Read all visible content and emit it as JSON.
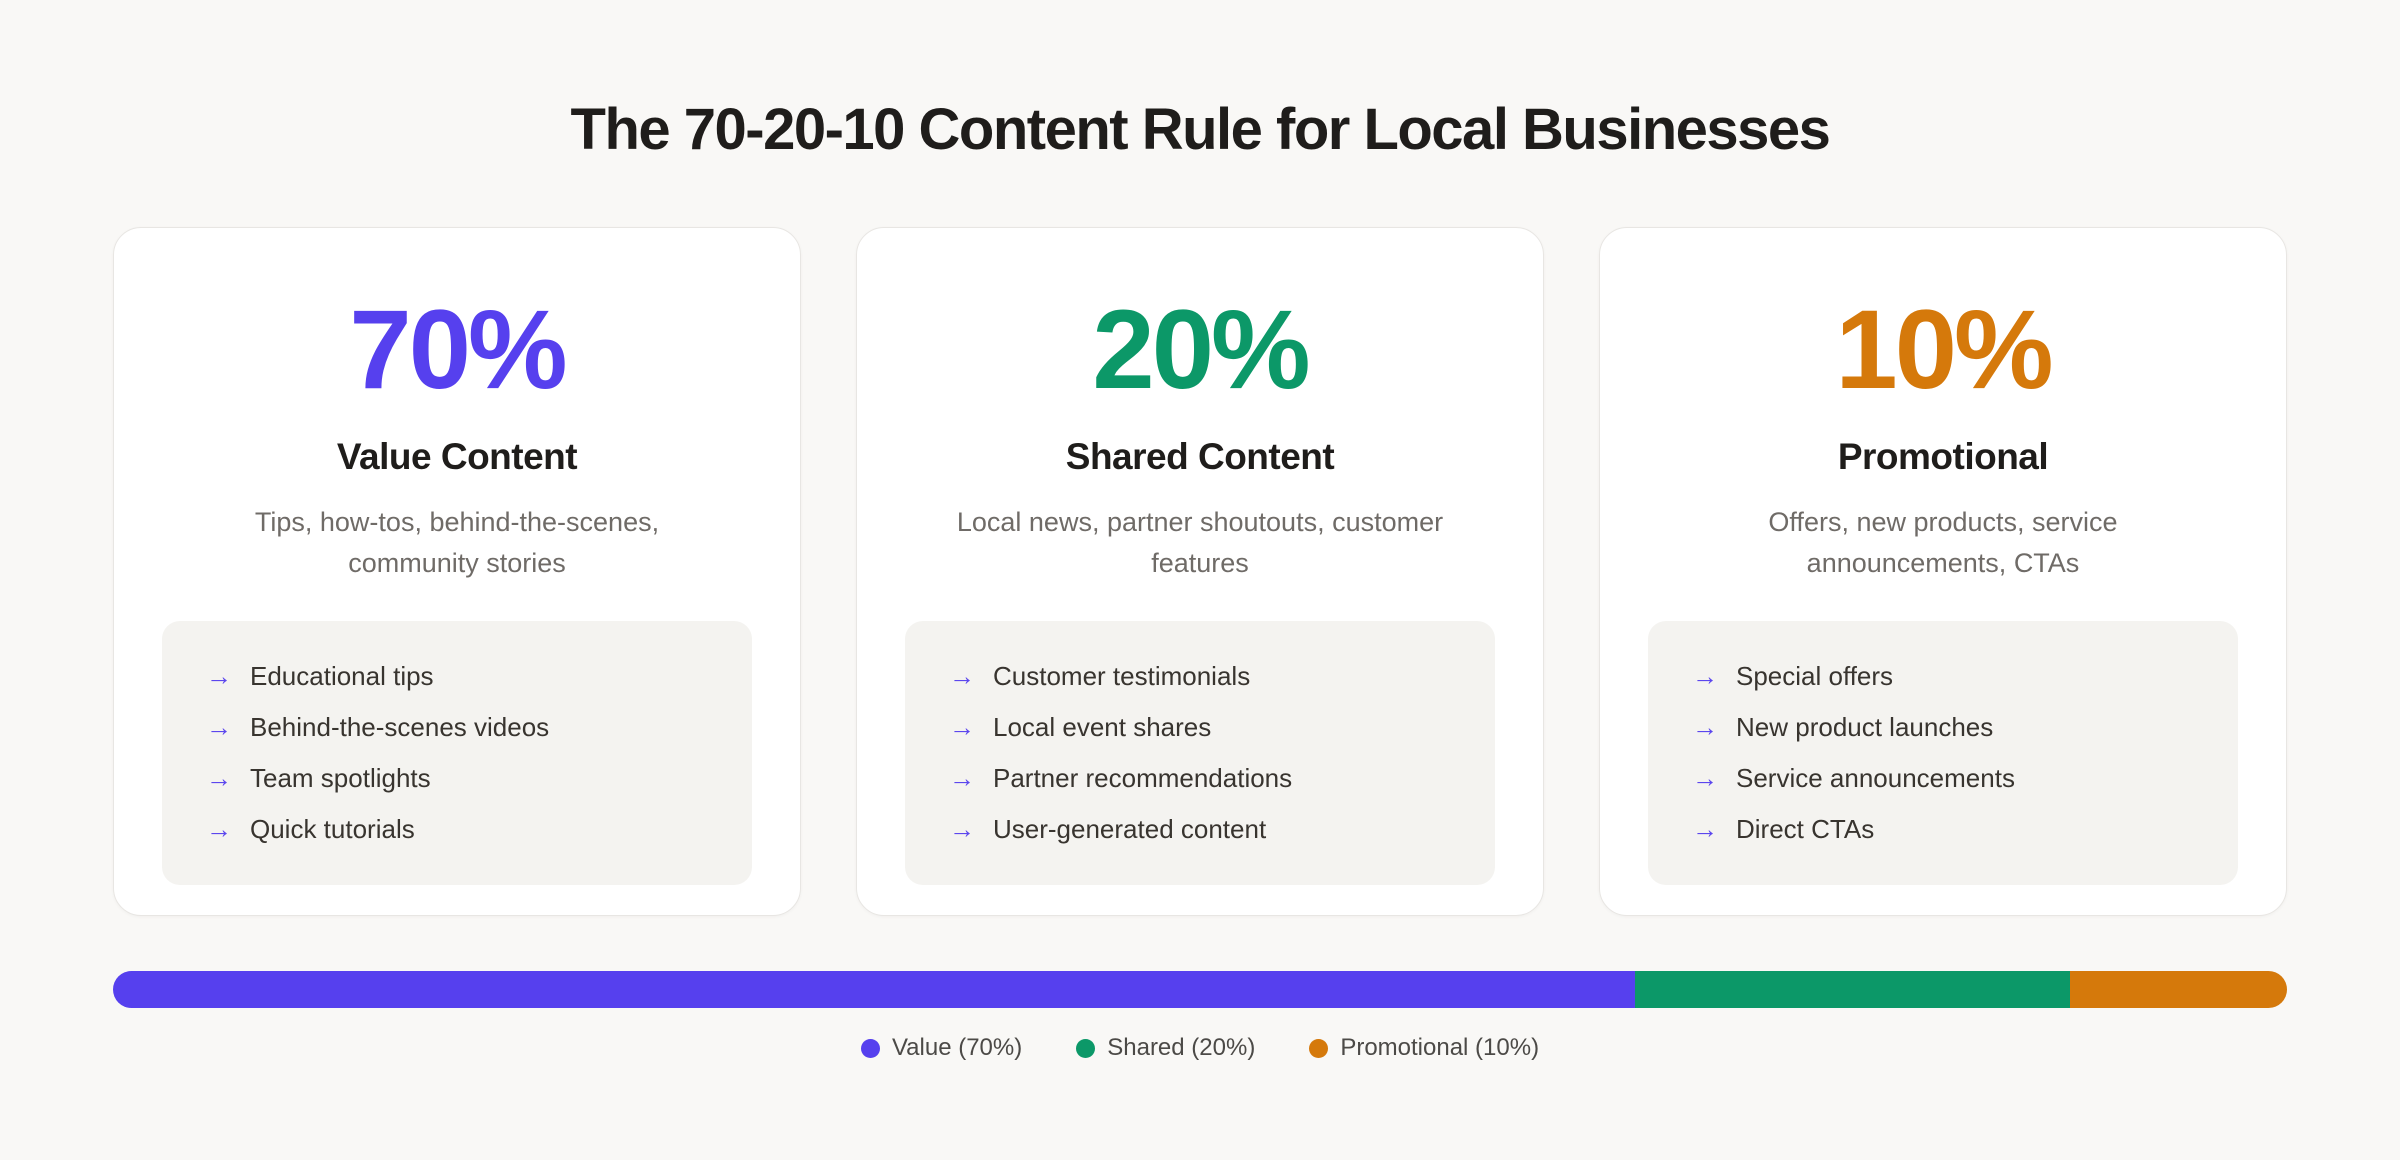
{
  "page": {
    "title": "The 70-20-10 Content Rule for Local Businesses"
  },
  "colors": {
    "value_purple": "#5640ee",
    "shared_green": "#0c9868",
    "promo_orange": "#d5790b",
    "background": "#f9f8f6",
    "card_background": "#ffffff",
    "panel_background": "#f4f3f0",
    "arrow_purple": "#5b46ee"
  },
  "cards": [
    {
      "percent": "70%",
      "accent": "#5640ee",
      "heading": "Value Content",
      "description": "Tips, how-tos, behind-the-scenes, community stories",
      "bullet_icon": "→",
      "items": [
        "Educational tips",
        "Behind-the-scenes videos",
        "Team spotlights",
        "Quick tutorials"
      ]
    },
    {
      "percent": "20%",
      "accent": "#0c9868",
      "heading": "Shared Content",
      "description": "Local news, partner shoutouts, customer features",
      "bullet_icon": "→",
      "items": [
        "Customer testimonials",
        "Local event shares",
        "Partner recommendations",
        "User-generated content"
      ]
    },
    {
      "percent": "10%",
      "accent": "#d5790b",
      "heading": "Promotional",
      "description": "Offers, new products, service announcements, CTAs",
      "bullet_icon": "→",
      "items": [
        "Special offers",
        "New product launches",
        "Service announcements",
        "Direct CTAs"
      ]
    }
  ],
  "chart_data": {
    "type": "bar",
    "orientation": "horizontal-stacked",
    "title": "The 70-20-10 Content Rule for Local Businesses",
    "categories": [
      "Value",
      "Shared",
      "Promotional"
    ],
    "values": [
      70,
      20,
      10
    ],
    "colors": [
      "#5640ee",
      "#0c9868",
      "#d5790b"
    ],
    "legend_position": "bottom",
    "legend_entries": [
      "Value (70%)",
      "Shared (20%)",
      "Promotional (10%)"
    ]
  },
  "bar": {
    "segments": [
      {
        "name": "value",
        "width": 70,
        "color": "#5640ee"
      },
      {
        "name": "shared",
        "width": 20,
        "color": "#0c9868"
      },
      {
        "name": "promotional",
        "width": 10,
        "color": "#d5790b"
      }
    ]
  },
  "legend": {
    "items": [
      {
        "label": "Value (70%)",
        "color": "#5640ee"
      },
      {
        "label": "Shared (20%)",
        "color": "#0c9868"
      },
      {
        "label": "Promotional (10%)",
        "color": "#d5790b"
      }
    ]
  }
}
